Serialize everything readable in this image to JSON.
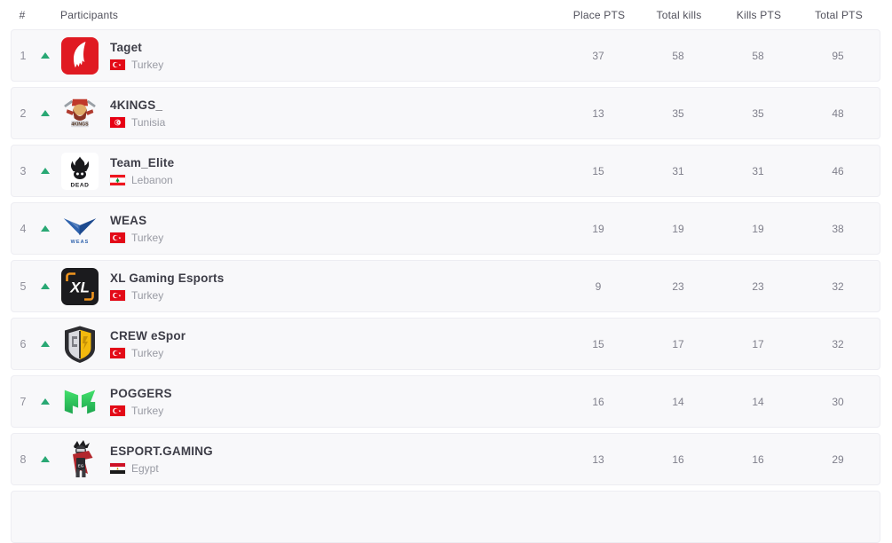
{
  "table": {
    "headers": {
      "rank": "#",
      "participants": "Participants",
      "place_pts": "Place PTS",
      "total_kills": "Total kills",
      "kills_pts": "Kills PTS",
      "total_pts": "Total PTS"
    }
  },
  "colors": {
    "rank_up_green": "#29a874",
    "row_background": "#f8f8fa",
    "row_border": "#ededf2",
    "team_name_text": "#3d3d47",
    "secondary_text": "#989aa3",
    "number_text": "#7f7f8b"
  },
  "rows": [
    {
      "rank": "1",
      "movement": "up",
      "logo": "taget-wing-logo",
      "name": "Taget",
      "flag": "turkey-flag",
      "country": "Turkey",
      "place_pts": "37",
      "total_kills": "58",
      "kills_pts": "58",
      "total_pts": "95"
    },
    {
      "rank": "2",
      "movement": "up",
      "logo": "4kings-king-logo",
      "name": "4KINGS_",
      "flag": "tunisia-flag",
      "country": "Tunisia",
      "place_pts": "13",
      "total_kills": "35",
      "kills_pts": "35",
      "total_pts": "48"
    },
    {
      "rank": "3",
      "movement": "up",
      "logo": "team-elite-dead-skull-logo",
      "name": "Team_Elite",
      "flag": "lebanon-flag",
      "country": "Lebanon",
      "place_pts": "15",
      "total_kills": "31",
      "kills_pts": "31",
      "total_pts": "46"
    },
    {
      "rank": "4",
      "movement": "up",
      "logo": "weas-wings-logo",
      "name": "WEAS",
      "flag": "turkey-flag",
      "country": "Turkey",
      "place_pts": "19",
      "total_kills": "19",
      "kills_pts": "19",
      "total_pts": "38"
    },
    {
      "rank": "5",
      "movement": "up",
      "logo": "xl-black-square-logo",
      "name": "XL Gaming Esports",
      "flag": "turkey-flag",
      "country": "Turkey",
      "place_pts": "9",
      "total_kills": "23",
      "kills_pts": "23",
      "total_pts": "32"
    },
    {
      "rank": "6",
      "movement": "up",
      "logo": "crew-shield-logo",
      "name": "CREW eSpor",
      "flag": "turkey-flag",
      "country": "Turkey",
      "place_pts": "15",
      "total_kills": "17",
      "kills_pts": "17",
      "total_pts": "32"
    },
    {
      "rank": "7",
      "movement": "up",
      "logo": "poggers-pg-logo",
      "name": "POGGERS",
      "flag": "turkey-flag",
      "country": "Turkey",
      "place_pts": "16",
      "total_kills": "14",
      "kills_pts": "14",
      "total_pts": "30"
    },
    {
      "rank": "8",
      "movement": "up",
      "logo": "esport-gaming-mascot-logo",
      "name": "ESPORT.GAMING",
      "flag": "egypt-flag",
      "country": "Egypt",
      "place_pts": "13",
      "total_kills": "16",
      "kills_pts": "16",
      "total_pts": "29"
    }
  ],
  "partial_next_row_visible": true
}
